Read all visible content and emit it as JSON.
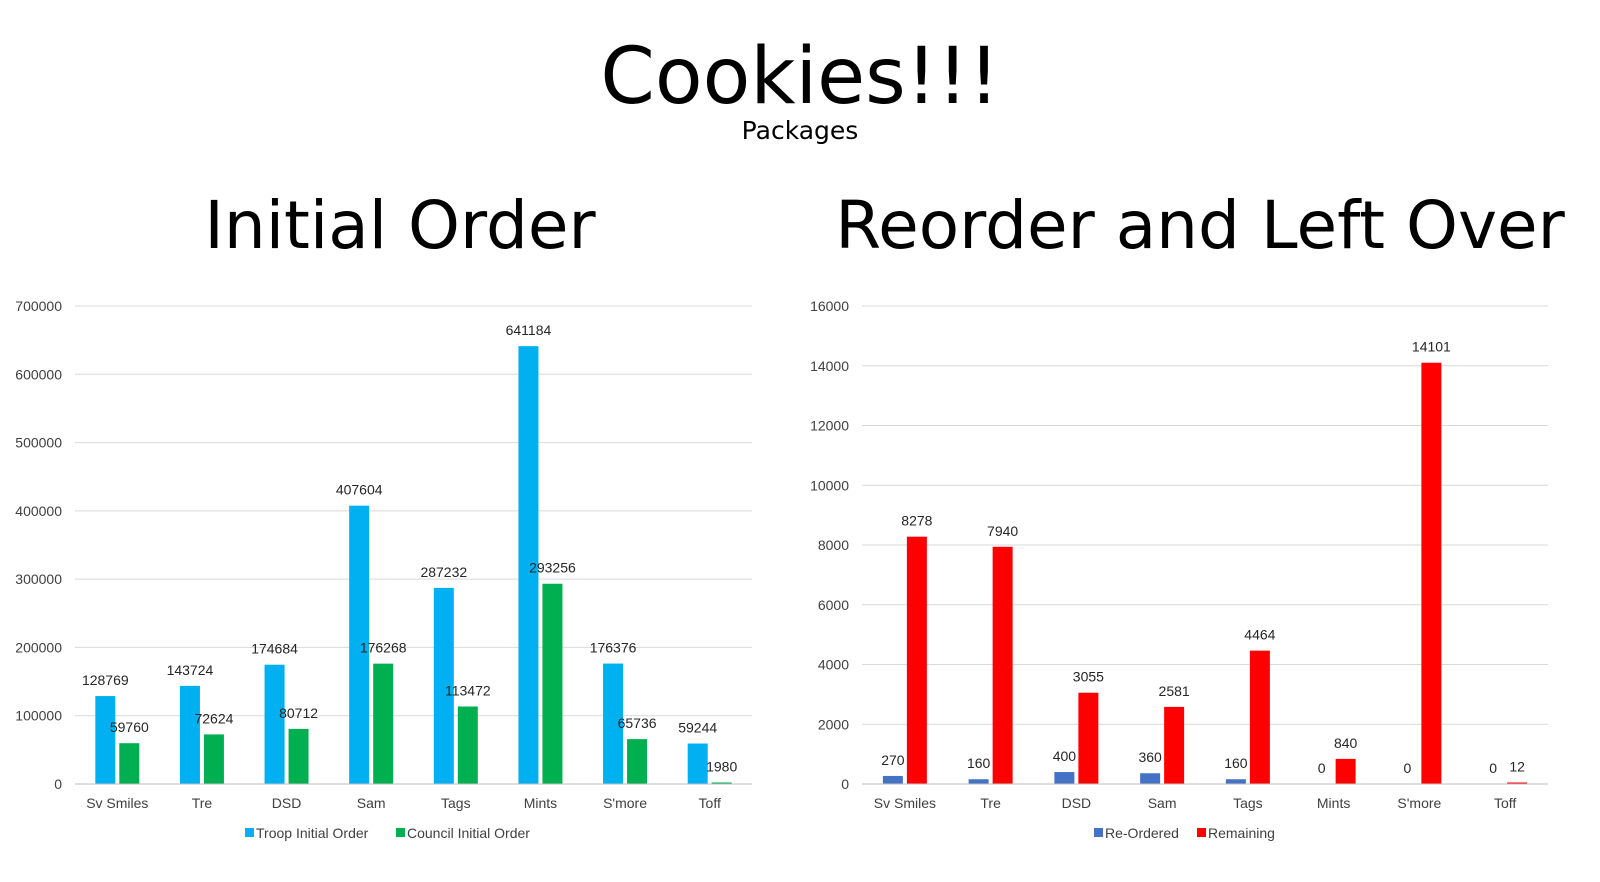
{
  "title": "Cookies!!!",
  "subtitle": "Packages",
  "colors": {
    "troop": "#00b0f0",
    "council": "#00b050",
    "reordered": "#4472c4",
    "remaining": "#ff0000",
    "grid": "#d9d9d9"
  },
  "chart_data": [
    {
      "type": "bar",
      "title": "Initial Order",
      "categories": [
        "Sv Smiles",
        "Tre",
        "DSD",
        "Sam",
        "Tags",
        "Mints",
        "S'more",
        "Toff"
      ],
      "series": [
        {
          "name": "Troop Initial Order",
          "values": [
            128769,
            143724,
            174684,
            407604,
            287232,
            641184,
            176376,
            59244
          ]
        },
        {
          "name": "Council Initial Order",
          "values": [
            59760,
            72624,
            80712,
            176268,
            113472,
            293256,
            65736,
            1980
          ]
        }
      ],
      "yticks": [
        "0",
        "100000",
        "200000",
        "300000",
        "400000",
        "500000",
        "600000",
        "700000"
      ],
      "ylim": [
        0,
        700000
      ],
      "grid": true,
      "legend": "bottom",
      "xlabel": "",
      "ylabel": ""
    },
    {
      "type": "bar",
      "title": "Reorder and Left Over",
      "categories": [
        "Sv Smiles",
        "Tre",
        "DSD",
        "Sam",
        "Tags",
        "Mints",
        "S'more",
        "Toff"
      ],
      "series": [
        {
          "name": "Re-Ordered",
          "values": [
            270,
            160,
            400,
            360,
            160,
            0,
            0,
            0
          ]
        },
        {
          "name": "Remaining",
          "values": [
            8278,
            7940,
            3055,
            2581,
            4464,
            840,
            14101,
            12
          ]
        }
      ],
      "yticks": [
        "0",
        "2000",
        "4000",
        "6000",
        "8000",
        "10000",
        "12000",
        "14000",
        "16000"
      ],
      "ylim": [
        0,
        16000
      ],
      "grid": true,
      "legend": "bottom",
      "xlabel": "",
      "ylabel": ""
    }
  ]
}
